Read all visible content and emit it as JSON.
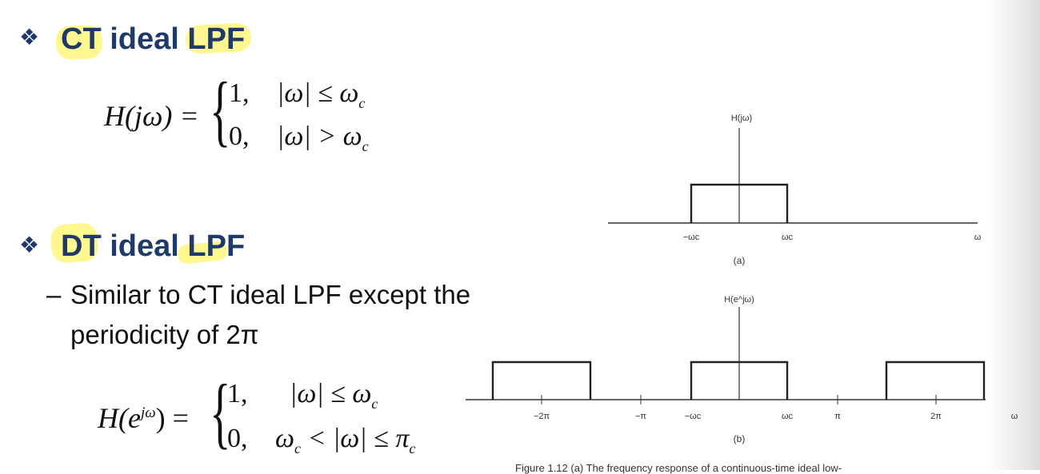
{
  "slide": {
    "section_ct": {
      "bullet": "❖",
      "title_part1": "CT",
      "title_part2": "ideal",
      "title_part3": "LPF",
      "equation": {
        "lhs": "H(jω) =",
        "case1_value": "1,",
        "case1_condition": "|ω| ≤ ω",
        "case1_sub": "c",
        "case2_value": "0,",
        "case2_condition": "|ω| > ω",
        "case2_sub": "c"
      }
    },
    "section_dt": {
      "bullet": "❖",
      "title_part1": "DT",
      "title_part2": "ideal",
      "title_part3": "LPF",
      "sub_bullet_dash": "–",
      "sub_bullet_line1": "Similar to CT ideal LPF except the",
      "sub_bullet_line2": "periodicity of 2π",
      "equation": {
        "lhs_H": "H(e",
        "lhs_sup": "jω",
        "lhs_close": ") =",
        "case1_value": "1,",
        "case1_condition": "|ω| ≤ ω",
        "case1_sub": "c",
        "case2_value": "0,",
        "case2_condition_a": "ω",
        "case2_sub_a": "c",
        "case2_condition_b": " < |ω| ≤ π",
        "case2_sub_b": "c"
      }
    },
    "figure": {
      "caption_partial": "Figure 1.12  (a) The frequency response of a continuous-time ideal low-",
      "colors": {
        "axis": "#333333",
        "box": "#222222",
        "highlight": "#fff78a",
        "heading": "#1f3a66"
      }
    }
  },
  "chart_data": [
    {
      "type": "line",
      "panel_label": "(a)",
      "ylabel": "H(jω)",
      "xlabel": "ω",
      "x_tick_labels": [
        "−ωc",
        "ωc"
      ],
      "segments": [
        {
          "x_start": "−ωc",
          "x_end": "ωc",
          "value": 1
        }
      ],
      "outside_value": 0
    },
    {
      "type": "line",
      "panel_label": "(b)",
      "ylabel": "H(e^jω)",
      "xlabel": "ω",
      "x_tick_labels": [
        "−2π",
        "−π",
        "−ωc",
        "ωc",
        "π",
        "2π"
      ],
      "segments": [
        {
          "x_start": "−2π−ωc",
          "x_end": "−2π+ωc",
          "value": 1
        },
        {
          "x_start": "−ωc",
          "x_end": "ωc",
          "value": 1
        },
        {
          "x_start": "2π−ωc",
          "x_end": "2π+ωc",
          "value": 1
        }
      ],
      "outside_value": 0
    }
  ]
}
